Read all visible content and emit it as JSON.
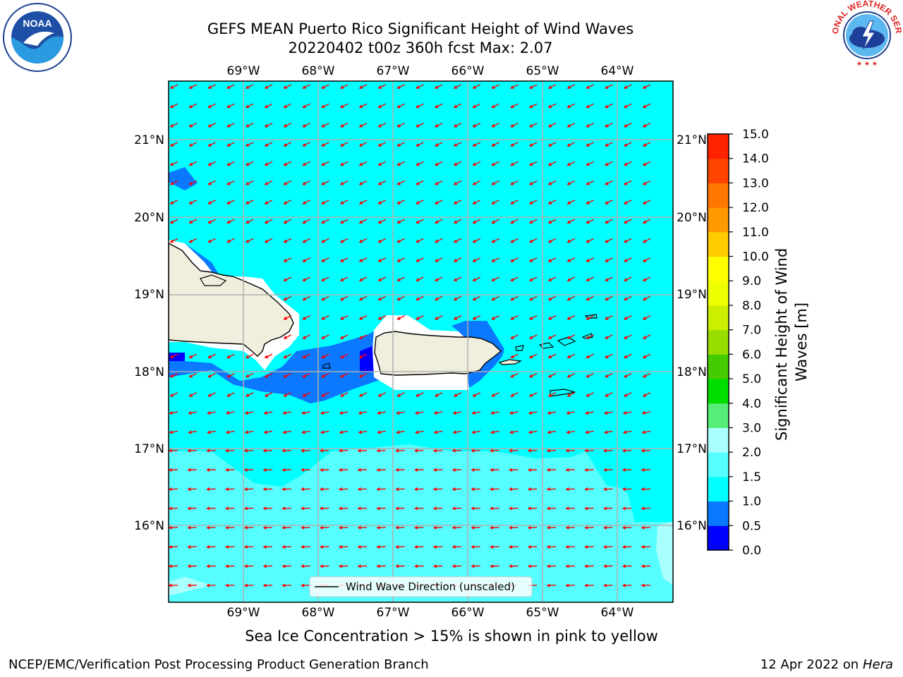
{
  "header": {
    "title_line1": "GEFS MEAN Puerto Rico Significant Height of Wind Waves",
    "title_line2": "20220402 t00z 360h fcst   Max: 2.07"
  },
  "logos": {
    "left": "noaa-logo",
    "right": "national-weather-service-logo",
    "right_text": "NATIONAL WEATHER SERVICE"
  },
  "map": {
    "lon_labels": [
      "69°W",
      "68°W",
      "67°W",
      "66°W",
      "65°W",
      "64°W"
    ],
    "lat_labels": [
      "21°N",
      "20°N",
      "19°N",
      "18°N",
      "17°N",
      "16°N"
    ],
    "land_color": "#f0eedc",
    "legend_text": "Wind Wave Direction (unscaled)",
    "arrow_color": "#ff0000",
    "wind_direction": "from east-northeast"
  },
  "colorbar": {
    "label": "Significant Height of Wind Waves [m]",
    "ticks": [
      "0.0",
      "0.5",
      "1.0",
      "1.5",
      "2.0",
      "3.0",
      "4.0",
      "5.0",
      "6.0",
      "7.0",
      "8.0",
      "9.0",
      "10.0",
      "11.0",
      "12.0",
      "13.0",
      "14.0",
      "15.0"
    ],
    "colors": [
      "#0000ff",
      "#0a78ff",
      "#00ffff",
      "#55ffff",
      "#aaffff",
      "#55ee77",
      "#00dd00",
      "#44cc00",
      "#99dd00",
      "#ccee00",
      "#eeff00",
      "#ffff00",
      "#ffcc00",
      "#ff9900",
      "#ff7700",
      "#ff4400",
      "#ff2200"
    ]
  },
  "footer": {
    "note": "Sea Ice Concentration > 15% is shown in pink to yellow",
    "credit_left": "NCEP/EMC/Verification Post Processing Product Generation Branch",
    "credit_date": "12 Apr 2022 on ",
    "credit_host": "Hera"
  }
}
